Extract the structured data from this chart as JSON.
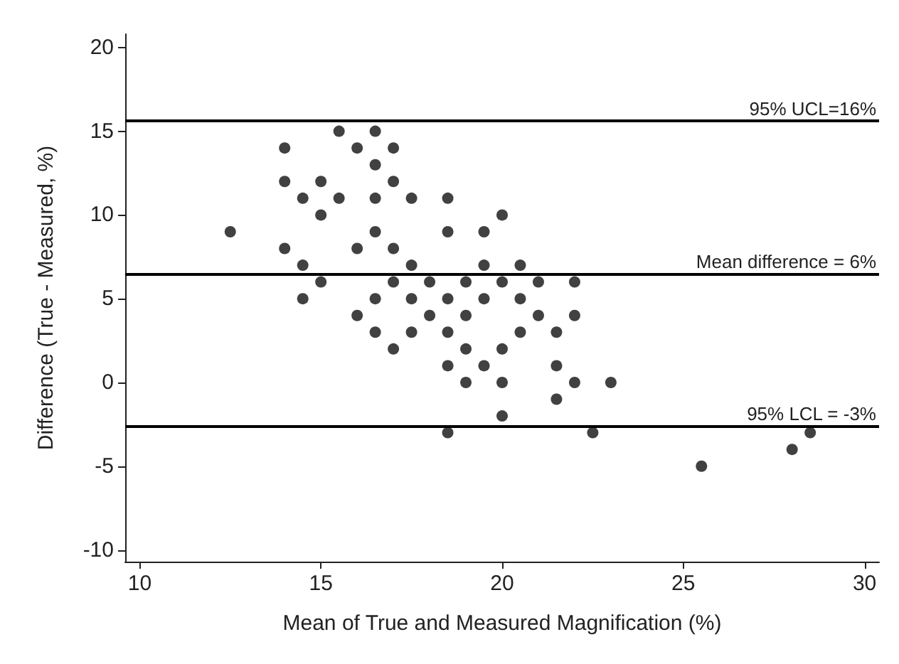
{
  "chart_data": {
    "type": "scatter",
    "xlabel": "Mean of True and Measured Magnification (%)",
    "ylabel": "Difference (True - Measured, %)",
    "x": [
      12.5,
      14,
      14,
      14,
      14.5,
      14.5,
      14.5,
      15,
      15,
      15,
      15.5,
      15.5,
      16,
      16,
      16,
      16.5,
      16.5,
      16.5,
      16.5,
      16.5,
      16.5,
      17,
      17,
      17,
      17,
      17,
      17.5,
      17.5,
      17.5,
      17.5,
      18,
      18,
      18.5,
      18.5,
      18.5,
      18.5,
      18.5,
      18.5,
      19,
      19,
      19,
      19,
      19.5,
      19.5,
      19.5,
      19.5,
      20,
      20,
      20,
      20,
      20,
      20.5,
      20.5,
      20.5,
      21,
      21,
      21.5,
      21.5,
      21.5,
      22,
      22,
      22,
      22.5,
      23,
      25.5,
      28,
      28.5
    ],
    "values": [
      9,
      14,
      12,
      8,
      11,
      7,
      5,
      12,
      10,
      6,
      15,
      11,
      14,
      8,
      4,
      15,
      13,
      11,
      9,
      5,
      3,
      14,
      12,
      8,
      6,
      2,
      11,
      7,
      5,
      3,
      6,
      4,
      11,
      9,
      5,
      3,
      1,
      -3,
      6,
      4,
      2,
      0,
      9,
      7,
      5,
      1,
      10,
      6,
      2,
      0,
      -2,
      7,
      5,
      3,
      6,
      4,
      3,
      1,
      -1,
      6,
      4,
      0,
      -3,
      0,
      -5,
      -4,
      -3
    ],
    "color": "#111111",
    "marker": "circle",
    "grid": false,
    "xlim": [
      9.6,
      30.4
    ],
    "xticks": [
      10,
      15,
      20,
      25,
      30
    ],
    "ylim": [
      -10.7,
      20.8
    ],
    "yticks": [
      -10,
      -5,
      0,
      5,
      10,
      15,
      20
    ],
    "ref_lines": [
      {
        "axis": "y",
        "value": 15.6,
        "label": "95% UCL=16%"
      },
      {
        "axis": "y",
        "value": 6.5,
        "label": "Mean difference = 6%"
      },
      {
        "axis": "y",
        "value": -2.6,
        "label": "95% LCL = -3%"
      }
    ]
  }
}
